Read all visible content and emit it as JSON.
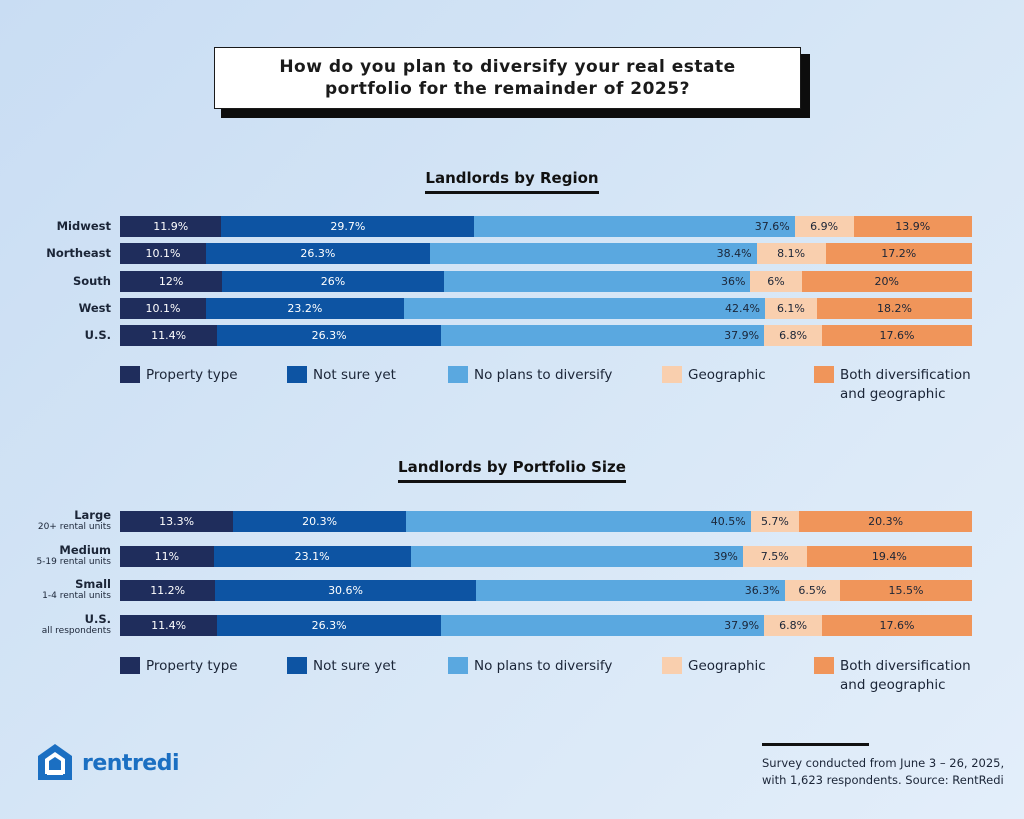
{
  "title": "How do you plan to diversify your real estate portfolio for the remainder of 2025?",
  "colors": {
    "property_type": "#1f2d5c",
    "not_sure_yet": "#0d54a3",
    "no_plans": "#5aa8e0",
    "geographic": "#f9cfae",
    "both": "#f0955a"
  },
  "legend": {
    "property_type": "Property type",
    "not_sure_yet": "Not sure yet",
    "no_plans": "No plans to diversify",
    "geographic": "Geographic",
    "both_line1": "Both diversification",
    "both_line2": "and geographic"
  },
  "chart_data": [
    {
      "type": "bar",
      "orientation": "horizontal-stacked-100",
      "title": "Landlords by Region",
      "categories": [
        "Midwest",
        "Northeast",
        "South",
        "West",
        "U.S."
      ],
      "series": [
        {
          "name": "Property type",
          "values": [
            11.9,
            10.1,
            12,
            10.1,
            11.4
          ],
          "labels": [
            "11.9%",
            "10.1%",
            "12%",
            "10.1%",
            "11.4%"
          ]
        },
        {
          "name": "Not sure yet",
          "values": [
            29.7,
            26.3,
            26,
            23.2,
            26.3
          ],
          "labels": [
            "29.7%",
            "26.3%",
            "26%",
            "23.2%",
            "26.3%"
          ]
        },
        {
          "name": "No plans to diversify",
          "values": [
            37.6,
            38.4,
            36,
            42.4,
            37.9
          ],
          "labels": [
            "37.6%",
            "38.4%",
            "36%",
            "42.4%",
            "37.9%"
          ]
        },
        {
          "name": "Geographic",
          "values": [
            6.9,
            8.1,
            6,
            6.1,
            6.8
          ],
          "labels": [
            "6.9%",
            "8.1%",
            "6%",
            "6.1%",
            "6.8%"
          ]
        },
        {
          "name": "Both diversification and geographic",
          "values": [
            13.9,
            17.2,
            20,
            18.2,
            17.6
          ],
          "labels": [
            "13.9%",
            "17.2%",
            "20%",
            "18.2%",
            "17.6%"
          ]
        }
      ]
    },
    {
      "type": "bar",
      "orientation": "horizontal-stacked-100",
      "title": "Landlords by Portfolio Size",
      "categories": [
        "Large",
        "Medium",
        "Small",
        "U.S."
      ],
      "subcategories": [
        "20+ rental units",
        "5-19 rental units",
        "1-4 rental units",
        "all respondents"
      ],
      "series": [
        {
          "name": "Property type",
          "values": [
            13.3,
            11,
            11.2,
            11.4
          ],
          "labels": [
            "13.3%",
            "11%",
            "11.2%",
            "11.4%"
          ]
        },
        {
          "name": "Not sure yet",
          "values": [
            20.3,
            23.1,
            30.6,
            26.3
          ],
          "labels": [
            "20.3%",
            "23.1%",
            "30.6%",
            "26.3%"
          ]
        },
        {
          "name": "No plans to diversify",
          "values": [
            40.5,
            39,
            36.3,
            37.9
          ],
          "labels": [
            "40.5%",
            "39%",
            "36.3%",
            "37.9%"
          ]
        },
        {
          "name": "Geographic",
          "values": [
            5.7,
            7.5,
            6.5,
            6.8
          ],
          "labels": [
            "5.7%",
            "7.5%",
            "6.5%",
            "6.8%"
          ]
        },
        {
          "name": "Both diversification and geographic",
          "values": [
            20.3,
            19.4,
            15.5,
            17.6
          ],
          "labels": [
            "20.3%",
            "19.4%",
            "15.5%",
            "17.6%"
          ]
        }
      ]
    }
  ],
  "footer": {
    "logo": "rentredi",
    "line1": "Survey conducted from June 3 – 26, 2025,",
    "line2": "with 1,623 respondents. Source: RentRedi"
  }
}
